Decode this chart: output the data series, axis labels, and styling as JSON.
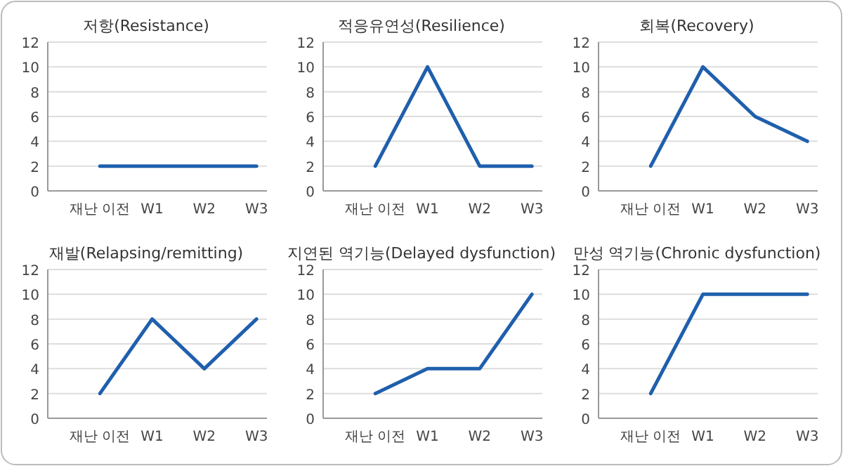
{
  "chart_data": [
    {
      "type": "line",
      "title": "저항(Resistance)",
      "categories": [
        "재난 이전",
        "W1",
        "W2",
        "W3"
      ],
      "values": [
        2,
        2,
        2,
        2
      ],
      "color": "#1f5fad",
      "ylim": [
        0,
        12
      ],
      "yticks": [
        0,
        2,
        4,
        6,
        8,
        10,
        12
      ],
      "grid": "y"
    },
    {
      "type": "line",
      "title": "적응유연성(Resilience)",
      "categories": [
        "재난 이전",
        "W1",
        "W2",
        "W3"
      ],
      "values": [
        2,
        10,
        2,
        2
      ],
      "color": "#1f5fad",
      "ylim": [
        0,
        12
      ],
      "yticks": [
        0,
        2,
        4,
        6,
        8,
        10,
        12
      ],
      "grid": "y"
    },
    {
      "type": "line",
      "title": "회복(Recovery)",
      "categories": [
        "재난 이전",
        "W1",
        "W2",
        "W3"
      ],
      "values": [
        2,
        10,
        6,
        4
      ],
      "color": "#1f5fad",
      "ylim": [
        0,
        12
      ],
      "yticks": [
        0,
        2,
        4,
        6,
        8,
        10,
        12
      ],
      "grid": "y"
    },
    {
      "type": "line",
      "title": "재발(Relapsing/remitting)",
      "categories": [
        "재난 이전",
        "W1",
        "W2",
        "W3"
      ],
      "values": [
        2,
        8,
        4,
        8
      ],
      "color": "#1f5fad",
      "ylim": [
        0,
        12
      ],
      "yticks": [
        0,
        2,
        4,
        6,
        8,
        10,
        12
      ],
      "grid": "y"
    },
    {
      "type": "line",
      "title": "지연된 역기능(Delayed dysfunction)",
      "categories": [
        "재난 이전",
        "W1",
        "W2",
        "W3"
      ],
      "values": [
        2,
        4,
        4,
        10
      ],
      "color": "#1f5fad",
      "ylim": [
        0,
        12
      ],
      "yticks": [
        0,
        2,
        4,
        6,
        8,
        10,
        12
      ],
      "grid": "y"
    },
    {
      "type": "line",
      "title": "만성 역기능(Chronic dysfunction)",
      "categories": [
        "재난 이전",
        "W1",
        "W2",
        "W3"
      ],
      "values": [
        2,
        10,
        10,
        10
      ],
      "color": "#1f5fad",
      "ylim": [
        0,
        12
      ],
      "yticks": [
        0,
        2,
        4,
        6,
        8,
        10,
        12
      ],
      "grid": "y"
    }
  ]
}
